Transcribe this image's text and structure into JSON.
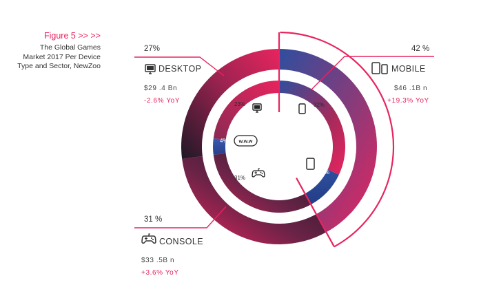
{
  "caption": {
    "figure": "Figure 5  >>  >>",
    "line1": "The Global Games",
    "line2": "Market 2017 Per Device",
    "line3": "Type and Sector, NewZoo"
  },
  "chart_data": {
    "type": "donut",
    "outer_ring": {
      "segments": [
        {
          "label": "MOBILE",
          "percent_label": "42 %",
          "value": 42,
          "revenue": "$46 .1B n",
          "yoy": "+19.3% YoY"
        },
        {
          "label": "CONSOLE",
          "percent_label": "31 %",
          "value": 31,
          "revenue": "$33 .5B n",
          "yoy": "+3.6% YoY"
        },
        {
          "label": "DESKTOP",
          "percent_label": "27%",
          "value": 27,
          "revenue": "$29 .4 Bn",
          "yoy": "-2.6% YoY"
        }
      ]
    },
    "inner_ring": {
      "segments": [
        {
          "icon": "smartphone-icon",
          "percent_label": "32%",
          "value": 32
        },
        {
          "icon": "tablet-icon",
          "percent_label": "10%",
          "value": 10
        },
        {
          "icon": "gamepad-icon",
          "percent_label": "31%",
          "value": 31
        },
        {
          "icon": "www-icon",
          "percent_label": "4%",
          "value": 4
        },
        {
          "icon": "monitor-icon",
          "percent_label": "23%",
          "value": 23
        }
      ]
    },
    "colors": {
      "pink": "#e8245f",
      "blue": "#2f4e9e",
      "dark": "#231a2a",
      "crimson": "#b2234a"
    }
  }
}
